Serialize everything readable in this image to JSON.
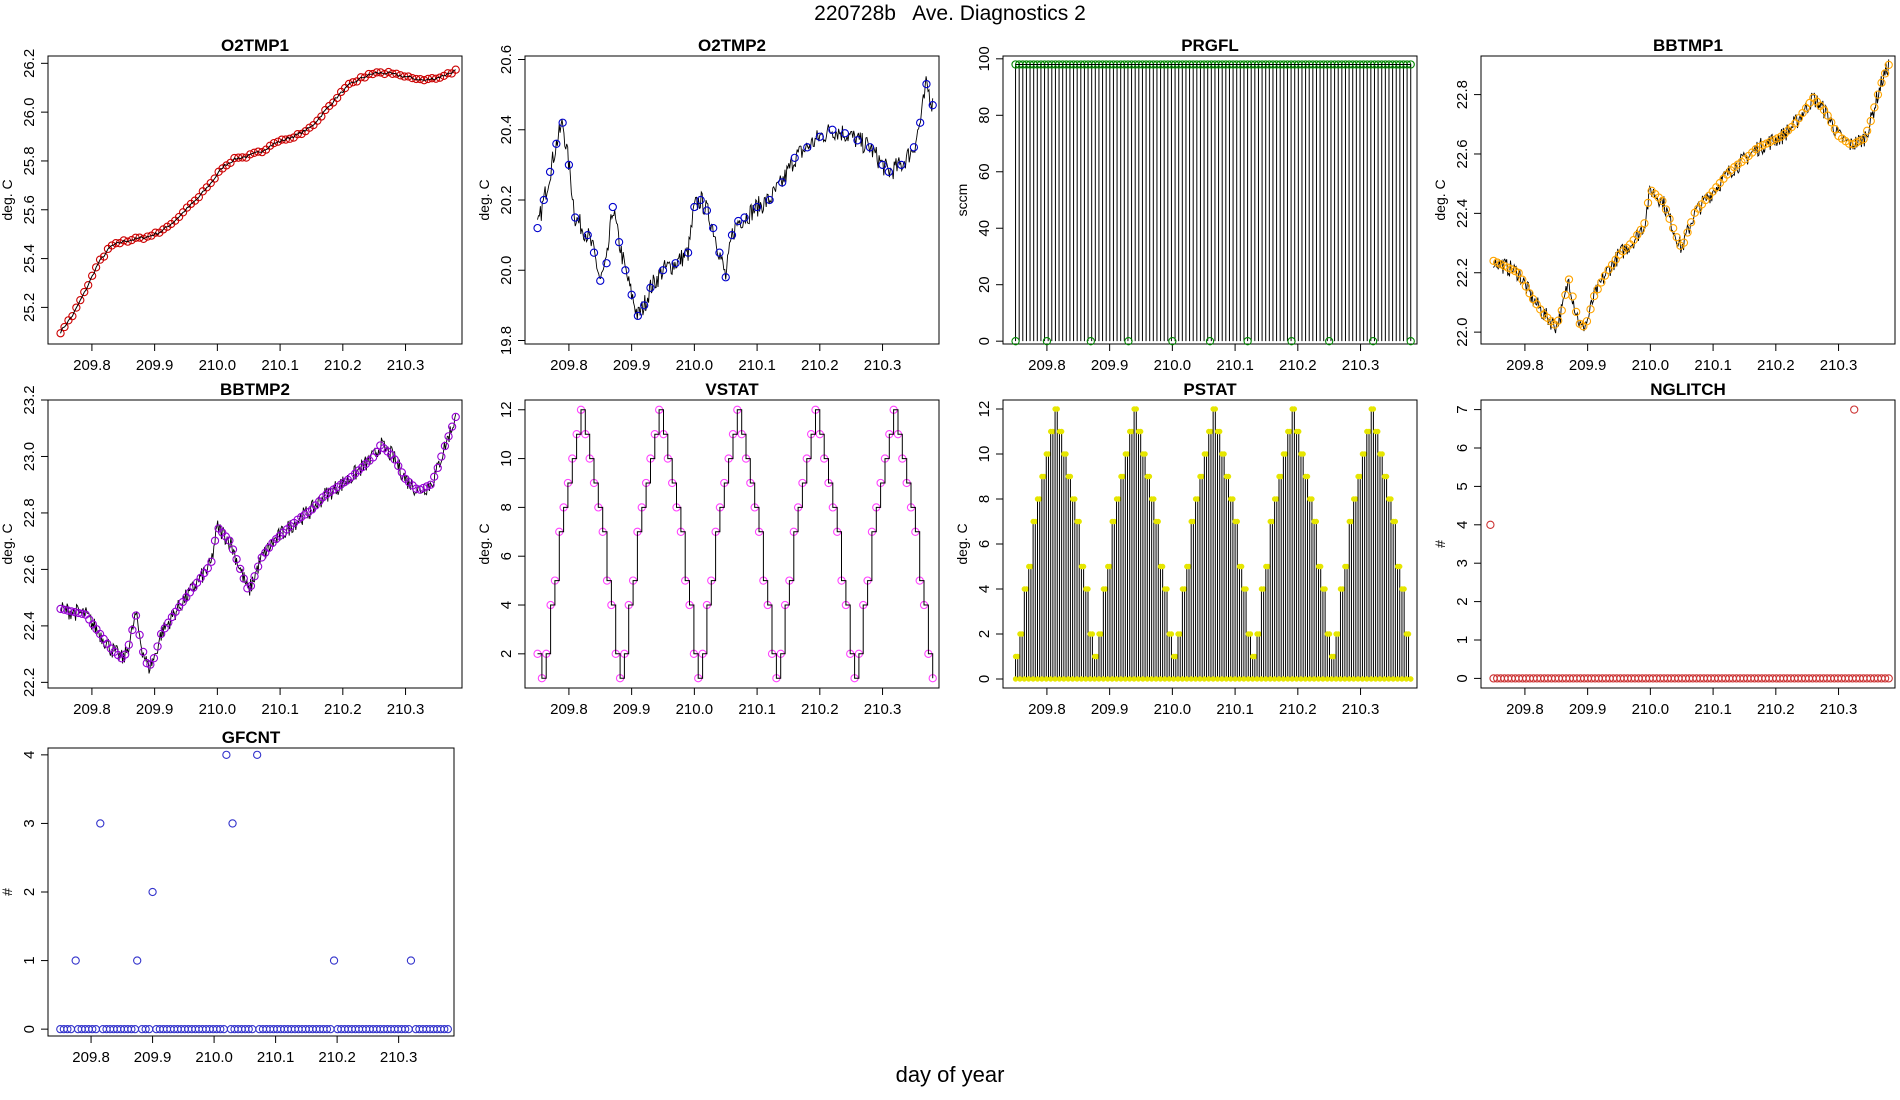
{
  "figure": {
    "title": "220728b   Ave. Diagnostics 2",
    "xlabel": "day of year"
  },
  "chart_data": [
    {
      "id": "o2tmp1",
      "type": "line",
      "title": "O2TMP1",
      "ylabel": "deg. C",
      "color": "#cc0000",
      "xlim": [
        209.73,
        210.39
      ],
      "ylim": [
        25.05,
        26.23
      ],
      "xticks": [
        "209.8",
        "209.9",
        "210.0",
        "210.1",
        "210.2",
        "210.3",
        "210.4"
      ],
      "yticks": [
        "25.2",
        "25.4",
        "25.6",
        "25.8",
        "26.0",
        "26.2"
      ],
      "style": "smooth-markers",
      "x": [
        209.75,
        209.77,
        209.79,
        209.81,
        209.83,
        209.85,
        209.87,
        209.89,
        209.91,
        209.93,
        209.95,
        209.97,
        209.99,
        210.01,
        210.03,
        210.05,
        210.07,
        210.09,
        210.11,
        210.13,
        210.15,
        210.17,
        210.19,
        210.21,
        210.23,
        210.25,
        210.27,
        210.29,
        210.31,
        210.33,
        210.35,
        210.38
      ],
      "y": [
        25.1,
        25.17,
        25.27,
        25.38,
        25.45,
        25.47,
        25.48,
        25.49,
        25.51,
        25.55,
        25.6,
        25.65,
        25.71,
        25.78,
        25.81,
        25.82,
        25.84,
        25.87,
        25.89,
        25.91,
        25.94,
        26.0,
        26.06,
        26.11,
        26.14,
        26.16,
        26.16,
        26.15,
        26.14,
        26.13,
        26.14,
        26.17
      ]
    },
    {
      "id": "o2tmp2",
      "type": "line",
      "title": "O2TMP2",
      "ylabel": "deg. C",
      "color": "#0000cc",
      "xlim": [
        209.73,
        210.39
      ],
      "ylim": [
        19.79,
        20.61
      ],
      "xticks": [
        "209.8",
        "209.9",
        "210.0",
        "210.1",
        "210.2",
        "210.3",
        "210.4"
      ],
      "yticks": [
        "19.8",
        "20.0",
        "20.2",
        "20.4",
        "20.6"
      ],
      "style": "noisy-sparse-markers",
      "x": [
        209.75,
        209.76,
        209.77,
        209.78,
        209.79,
        209.8,
        209.81,
        209.83,
        209.84,
        209.85,
        209.86,
        209.87,
        209.88,
        209.89,
        209.9,
        209.91,
        209.92,
        209.93,
        209.95,
        209.97,
        209.99,
        210.0,
        210.01,
        210.02,
        210.03,
        210.04,
        210.05,
        210.06,
        210.07,
        210.08,
        210.1,
        210.12,
        210.14,
        210.16,
        210.18,
        210.2,
        210.22,
        210.24,
        210.26,
        210.28,
        210.3,
        210.31,
        210.33,
        210.35,
        210.36,
        210.37,
        210.38
      ],
      "y": [
        20.12,
        20.2,
        20.28,
        20.36,
        20.42,
        20.3,
        20.15,
        20.1,
        20.05,
        19.97,
        20.02,
        20.18,
        20.08,
        20.0,
        19.93,
        19.87,
        19.9,
        19.95,
        20.0,
        20.02,
        20.05,
        20.18,
        20.2,
        20.17,
        20.12,
        20.05,
        19.98,
        20.1,
        20.14,
        20.15,
        20.18,
        20.2,
        20.25,
        20.32,
        20.35,
        20.38,
        20.4,
        20.39,
        20.37,
        20.35,
        20.3,
        20.28,
        20.3,
        20.35,
        20.42,
        20.53,
        20.47
      ]
    },
    {
      "id": "prgfl",
      "type": "line",
      "title": "PRGFL",
      "ylabel": "sccm",
      "color": "#008800",
      "xlim": [
        209.73,
        210.39
      ],
      "ylim": [
        -1,
        101
      ],
      "xticks": [
        "209.8",
        "209.9",
        "210.0",
        "210.1",
        "210.2",
        "210.3",
        "210.4"
      ],
      "yticks": [
        "0",
        "20",
        "40",
        "60",
        "80",
        "100"
      ],
      "style": "spikes",
      "high": 98,
      "low": 0,
      "count": 110,
      "low_points_x": [
        209.75,
        209.8,
        209.87,
        209.93,
        210.0,
        210.06,
        210.12,
        210.19,
        210.25,
        210.32,
        210.38
      ]
    },
    {
      "id": "bbtmp1",
      "type": "line",
      "title": "BBTMP1",
      "ylabel": "deg. C",
      "color": "#ffa500",
      "xlim": [
        209.73,
        210.39
      ],
      "ylim": [
        21.96,
        22.93
      ],
      "xticks": [
        "209.8",
        "209.9",
        "210.0",
        "210.1",
        "210.2",
        "210.3",
        "210.4"
      ],
      "yticks": [
        "22.0",
        "22.2",
        "22.4",
        "22.6",
        "22.8"
      ],
      "style": "noisy-dense-markers",
      "x": [
        209.75,
        209.77,
        209.79,
        209.81,
        209.83,
        209.85,
        209.86,
        209.87,
        209.88,
        209.89,
        209.9,
        209.91,
        209.93,
        209.95,
        209.97,
        209.99,
        210.0,
        210.02,
        210.04,
        210.05,
        210.07,
        210.09,
        210.11,
        210.13,
        210.15,
        210.17,
        210.19,
        210.21,
        210.23,
        210.25,
        210.26,
        210.28,
        210.3,
        210.32,
        210.34,
        210.35,
        210.36,
        210.37,
        210.38
      ],
      "y": [
        22.24,
        22.22,
        22.2,
        22.12,
        22.06,
        22.02,
        22.08,
        22.18,
        22.08,
        22.01,
        22.04,
        22.12,
        22.2,
        22.26,
        22.3,
        22.36,
        22.48,
        22.44,
        22.33,
        22.28,
        22.4,
        22.45,
        22.5,
        22.55,
        22.58,
        22.62,
        22.64,
        22.66,
        22.7,
        22.76,
        22.79,
        22.74,
        22.66,
        22.63,
        22.65,
        22.7,
        22.78,
        22.85,
        22.9
      ]
    },
    {
      "id": "bbtmp2",
      "type": "line",
      "title": "BBTMP2",
      "ylabel": "deg. C",
      "color": "#9400d3",
      "xlim": [
        209.73,
        210.39
      ],
      "ylim": [
        22.18,
        23.2
      ],
      "xticks": [
        "209.8",
        "209.9",
        "210.0",
        "210.1",
        "210.2",
        "210.3",
        "210.4"
      ],
      "yticks": [
        "22.2",
        "22.4",
        "22.6",
        "22.8",
        "23.0",
        "23.2"
      ],
      "style": "noisy-dense-markers",
      "x": [
        209.75,
        209.77,
        209.79,
        209.81,
        209.83,
        209.85,
        209.86,
        209.87,
        209.88,
        209.89,
        209.9,
        209.91,
        209.93,
        209.95,
        209.97,
        209.99,
        210.0,
        210.02,
        210.04,
        210.05,
        210.07,
        210.09,
        210.11,
        210.13,
        210.15,
        210.17,
        210.19,
        210.21,
        210.23,
        210.25,
        210.26,
        210.28,
        210.3,
        210.32,
        210.34,
        210.35,
        210.36,
        210.37,
        210.38
      ],
      "y": [
        22.46,
        22.45,
        22.44,
        22.38,
        22.32,
        22.28,
        22.34,
        22.44,
        22.32,
        22.25,
        22.29,
        22.37,
        22.44,
        22.5,
        22.56,
        22.62,
        22.75,
        22.7,
        22.58,
        22.52,
        22.64,
        22.7,
        22.74,
        22.78,
        22.81,
        22.86,
        22.89,
        22.92,
        22.96,
        23.0,
        23.04,
        23.0,
        22.92,
        22.88,
        22.9,
        22.95,
        23.02,
        23.08,
        23.14
      ]
    },
    {
      "id": "vstat",
      "type": "line",
      "title": "VSTAT",
      "ylabel": "deg. C",
      "color": "#ff44ff",
      "xlim": [
        209.73,
        210.39
      ],
      "ylim": [
        0.6,
        12.4
      ],
      "xticks": [
        "209.8",
        "209.9",
        "210.0",
        "210.1",
        "210.2",
        "210.3",
        "210.4"
      ],
      "yticks": [
        "2",
        "4",
        "6",
        "8",
        "10",
        "12"
      ],
      "style": "steps",
      "sequence": [
        2,
        1,
        2,
        4,
        5,
        7,
        8,
        9,
        10,
        11,
        12,
        11,
        10,
        9,
        8,
        7,
        5,
        4,
        2,
        1,
        2,
        4,
        5,
        7,
        8,
        9,
        10,
        11,
        12,
        11,
        10,
        9,
        8,
        7,
        5,
        4,
        2,
        1,
        2,
        4,
        5,
        7,
        8,
        9,
        10,
        11,
        12,
        11,
        10,
        9,
        8,
        7,
        5,
        4,
        2,
        1,
        2,
        4,
        5,
        7,
        8,
        9,
        10,
        11,
        12,
        11,
        10,
        9,
        8,
        7,
        5,
        4,
        2,
        1,
        2,
        4,
        5,
        7,
        8,
        9,
        10,
        11,
        12,
        11,
        10,
        9,
        8,
        7,
        5,
        4,
        2,
        1
      ]
    },
    {
      "id": "pstat",
      "type": "line",
      "title": "PSTAT",
      "ylabel": "deg. C",
      "color": "#e6e600",
      "xlim": [
        209.73,
        210.39
      ],
      "ylim": [
        -0.4,
        12.4
      ],
      "xticks": [
        "209.8",
        "209.9",
        "210.0",
        "210.1",
        "210.2",
        "210.3",
        "210.4"
      ],
      "yticks": [
        "0",
        "2",
        "4",
        "6",
        "8",
        "10",
        "12"
      ],
      "style": "spike-staircase",
      "sequence": [
        1,
        2,
        4,
        5,
        7,
        8,
        9,
        10,
        11,
        12,
        11,
        10,
        9,
        8,
        7,
        5,
        4,
        2,
        1,
        2,
        4,
        5,
        7,
        8,
        9,
        10,
        11,
        12,
        11,
        10,
        9,
        8,
        7,
        5,
        4,
        2,
        1,
        2,
        4,
        5,
        7,
        8,
        9,
        10,
        11,
        12,
        11,
        10,
        9,
        8,
        7,
        5,
        4,
        2,
        1,
        2,
        4,
        5,
        7,
        8,
        9,
        10,
        11,
        12,
        11,
        10,
        9,
        8,
        7,
        5,
        4,
        2,
        1,
        2,
        4,
        5,
        7,
        8,
        9,
        10,
        11,
        12,
        11,
        10,
        9,
        8,
        7,
        5,
        4,
        2,
        0
      ]
    },
    {
      "id": "nglitch",
      "type": "scatter",
      "title": "NGLITCH",
      "ylabel": "#",
      "color": "#cc3333",
      "xlim": [
        209.73,
        210.39
      ],
      "ylim": [
        -0.25,
        7.25
      ],
      "xticks": [
        "209.8",
        "209.9",
        "210.0",
        "210.1",
        "210.2",
        "210.3",
        "210.4"
      ],
      "yticks": [
        "0",
        "1",
        "2",
        "3",
        "4",
        "5",
        "6",
        "7"
      ],
      "style": "points",
      "baseline": 0,
      "count": 110,
      "outliers": [
        {
          "x": 209.745,
          "y": 4
        },
        {
          "x": 210.325,
          "y": 7
        }
      ]
    },
    {
      "id": "gfcnt",
      "type": "scatter",
      "title": "GFCNT",
      "ylabel": "#",
      "color": "#3333cc",
      "xlim": [
        209.73,
        210.39
      ],
      "ylim": [
        -0.1,
        4.1
      ],
      "xticks": [
        "209.8",
        "209.9",
        "210.0",
        "210.1",
        "210.2",
        "210.3",
        "210.4"
      ],
      "yticks": [
        "0",
        "1",
        "2",
        "3",
        "4"
      ],
      "style": "points",
      "baseline": 0,
      "count": 110,
      "outliers": [
        {
          "x": 209.775,
          "y": 1
        },
        {
          "x": 209.815,
          "y": 3
        },
        {
          "x": 209.875,
          "y": 1
        },
        {
          "x": 209.9,
          "y": 2
        },
        {
          "x": 210.02,
          "y": 4
        },
        {
          "x": 210.03,
          "y": 3
        },
        {
          "x": 210.07,
          "y": 4
        },
        {
          "x": 210.195,
          "y": 1
        },
        {
          "x": 210.32,
          "y": 1
        }
      ]
    }
  ]
}
